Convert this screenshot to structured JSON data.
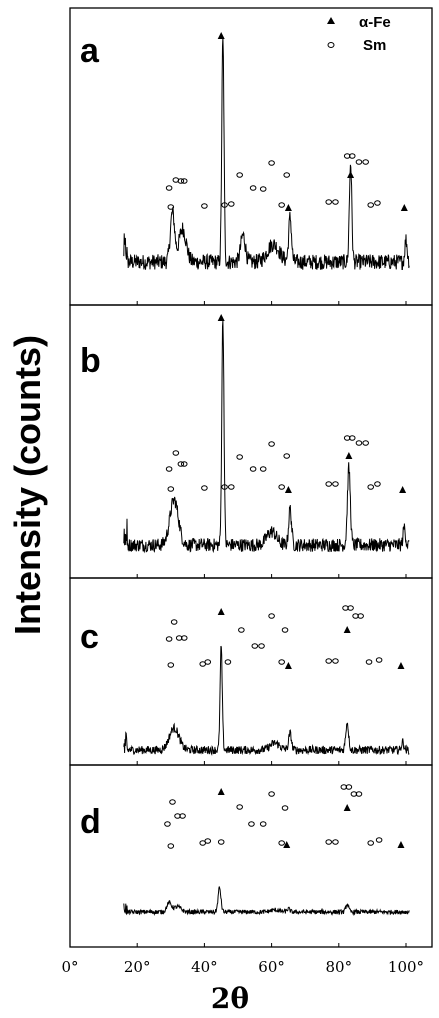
{
  "chart_data": {
    "type": "line",
    "ylabel": "Intensity (counts)",
    "xlabel": "2θ",
    "xlim": [
      0,
      100
    ],
    "x_ticks": [
      "0°",
      "20°",
      "40°",
      "60°",
      "80°",
      "100°"
    ],
    "legend": {
      "placement": "top-right",
      "entries": [
        {
          "marker": "filled-triangle",
          "label": "α-Fe"
        },
        {
          "marker": "open-circle",
          "label": "Sm"
        }
      ]
    },
    "panels": [
      {
        "label": "a",
        "alpha_fe_markers": [
          45,
          65,
          83.5,
          99.5
        ],
        "sm_markers": [
          29.5,
          31.5,
          33,
          34,
          30,
          40,
          46,
          48,
          50.5,
          54.5,
          57.5,
          60,
          63,
          64.5,
          77,
          79,
          82.5,
          84,
          86,
          88,
          89.5,
          91.5
        ],
        "peaks": [
          {
            "x": 30.5,
            "h": 0.22,
            "w": 0.9
          },
          {
            "x": 33.5,
            "h": 0.15,
            "w": 1.5
          },
          {
            "x": 45.5,
            "h": 1.0,
            "w": 0.45
          },
          {
            "x": 51.5,
            "h": 0.12,
            "w": 1.0
          },
          {
            "x": 60.5,
            "h": 0.08,
            "w": 2.5
          },
          {
            "x": 65.5,
            "h": 0.2,
            "w": 0.6
          },
          {
            "x": 83.5,
            "h": 0.45,
            "w": 0.5
          },
          {
            "x": 100,
            "h": 0.1,
            "w": 0.5
          }
        ],
        "noise": 0.035
      },
      {
        "label": "b",
        "alpha_fe_markers": [
          45,
          65,
          83,
          99
        ],
        "sm_markers": [
          29.5,
          31.5,
          33,
          34,
          30,
          40,
          46,
          48,
          50.5,
          54.5,
          57.5,
          60,
          63,
          64.5,
          77,
          79,
          82.5,
          84,
          86,
          88,
          89.5,
          91.5
        ],
        "peaks": [
          {
            "x": 31,
            "h": 0.2,
            "w": 1.8
          },
          {
            "x": 45.5,
            "h": 1.0,
            "w": 0.45
          },
          {
            "x": 60,
            "h": 0.06,
            "w": 2.0
          },
          {
            "x": 65.5,
            "h": 0.16,
            "w": 0.6
          },
          {
            "x": 83,
            "h": 0.34,
            "w": 0.6
          },
          {
            "x": 99.5,
            "h": 0.08,
            "w": 0.5
          }
        ],
        "noise": 0.03
      },
      {
        "label": "c",
        "alpha_fe_markers": [
          45,
          65,
          82.5,
          98.5
        ],
        "sm_markers": [
          29.5,
          31,
          32.5,
          34,
          30,
          39.5,
          41,
          47,
          51,
          55,
          57,
          60,
          63,
          64,
          77,
          79,
          82,
          83.5,
          85,
          86.5,
          89,
          92
        ],
        "peaks": [
          {
            "x": 31,
            "h": 0.16,
            "w": 2.0
          },
          {
            "x": 45,
            "h": 0.75,
            "w": 0.45
          },
          {
            "x": 61,
            "h": 0.05,
            "w": 2.0
          },
          {
            "x": 65.5,
            "h": 0.12,
            "w": 0.6
          },
          {
            "x": 82.5,
            "h": 0.2,
            "w": 0.6
          },
          {
            "x": 99,
            "h": 0.06,
            "w": 0.5
          }
        ],
        "noise": 0.03
      },
      {
        "label": "d",
        "alpha_fe_markers": [
          45,
          64.5,
          82.5,
          98.5
        ],
        "sm_markers": [
          29,
          30.5,
          32,
          33.5,
          30,
          39.5,
          41,
          45,
          50.5,
          54,
          57.5,
          60,
          63,
          64,
          77,
          79,
          81.5,
          83,
          84.5,
          86,
          89.5,
          92
        ],
        "peaks": [
          {
            "x": 29.5,
            "h": 0.14,
            "w": 1.0
          },
          {
            "x": 32,
            "h": 0.08,
            "w": 1.5
          },
          {
            "x": 44.5,
            "h": 0.38,
            "w": 0.6
          },
          {
            "x": 61,
            "h": 0.03,
            "w": 2.0
          },
          {
            "x": 65,
            "h": 0.05,
            "w": 0.6
          },
          {
            "x": 82.5,
            "h": 0.12,
            "w": 0.6
          }
        ],
        "noise": 0.035
      }
    ]
  }
}
